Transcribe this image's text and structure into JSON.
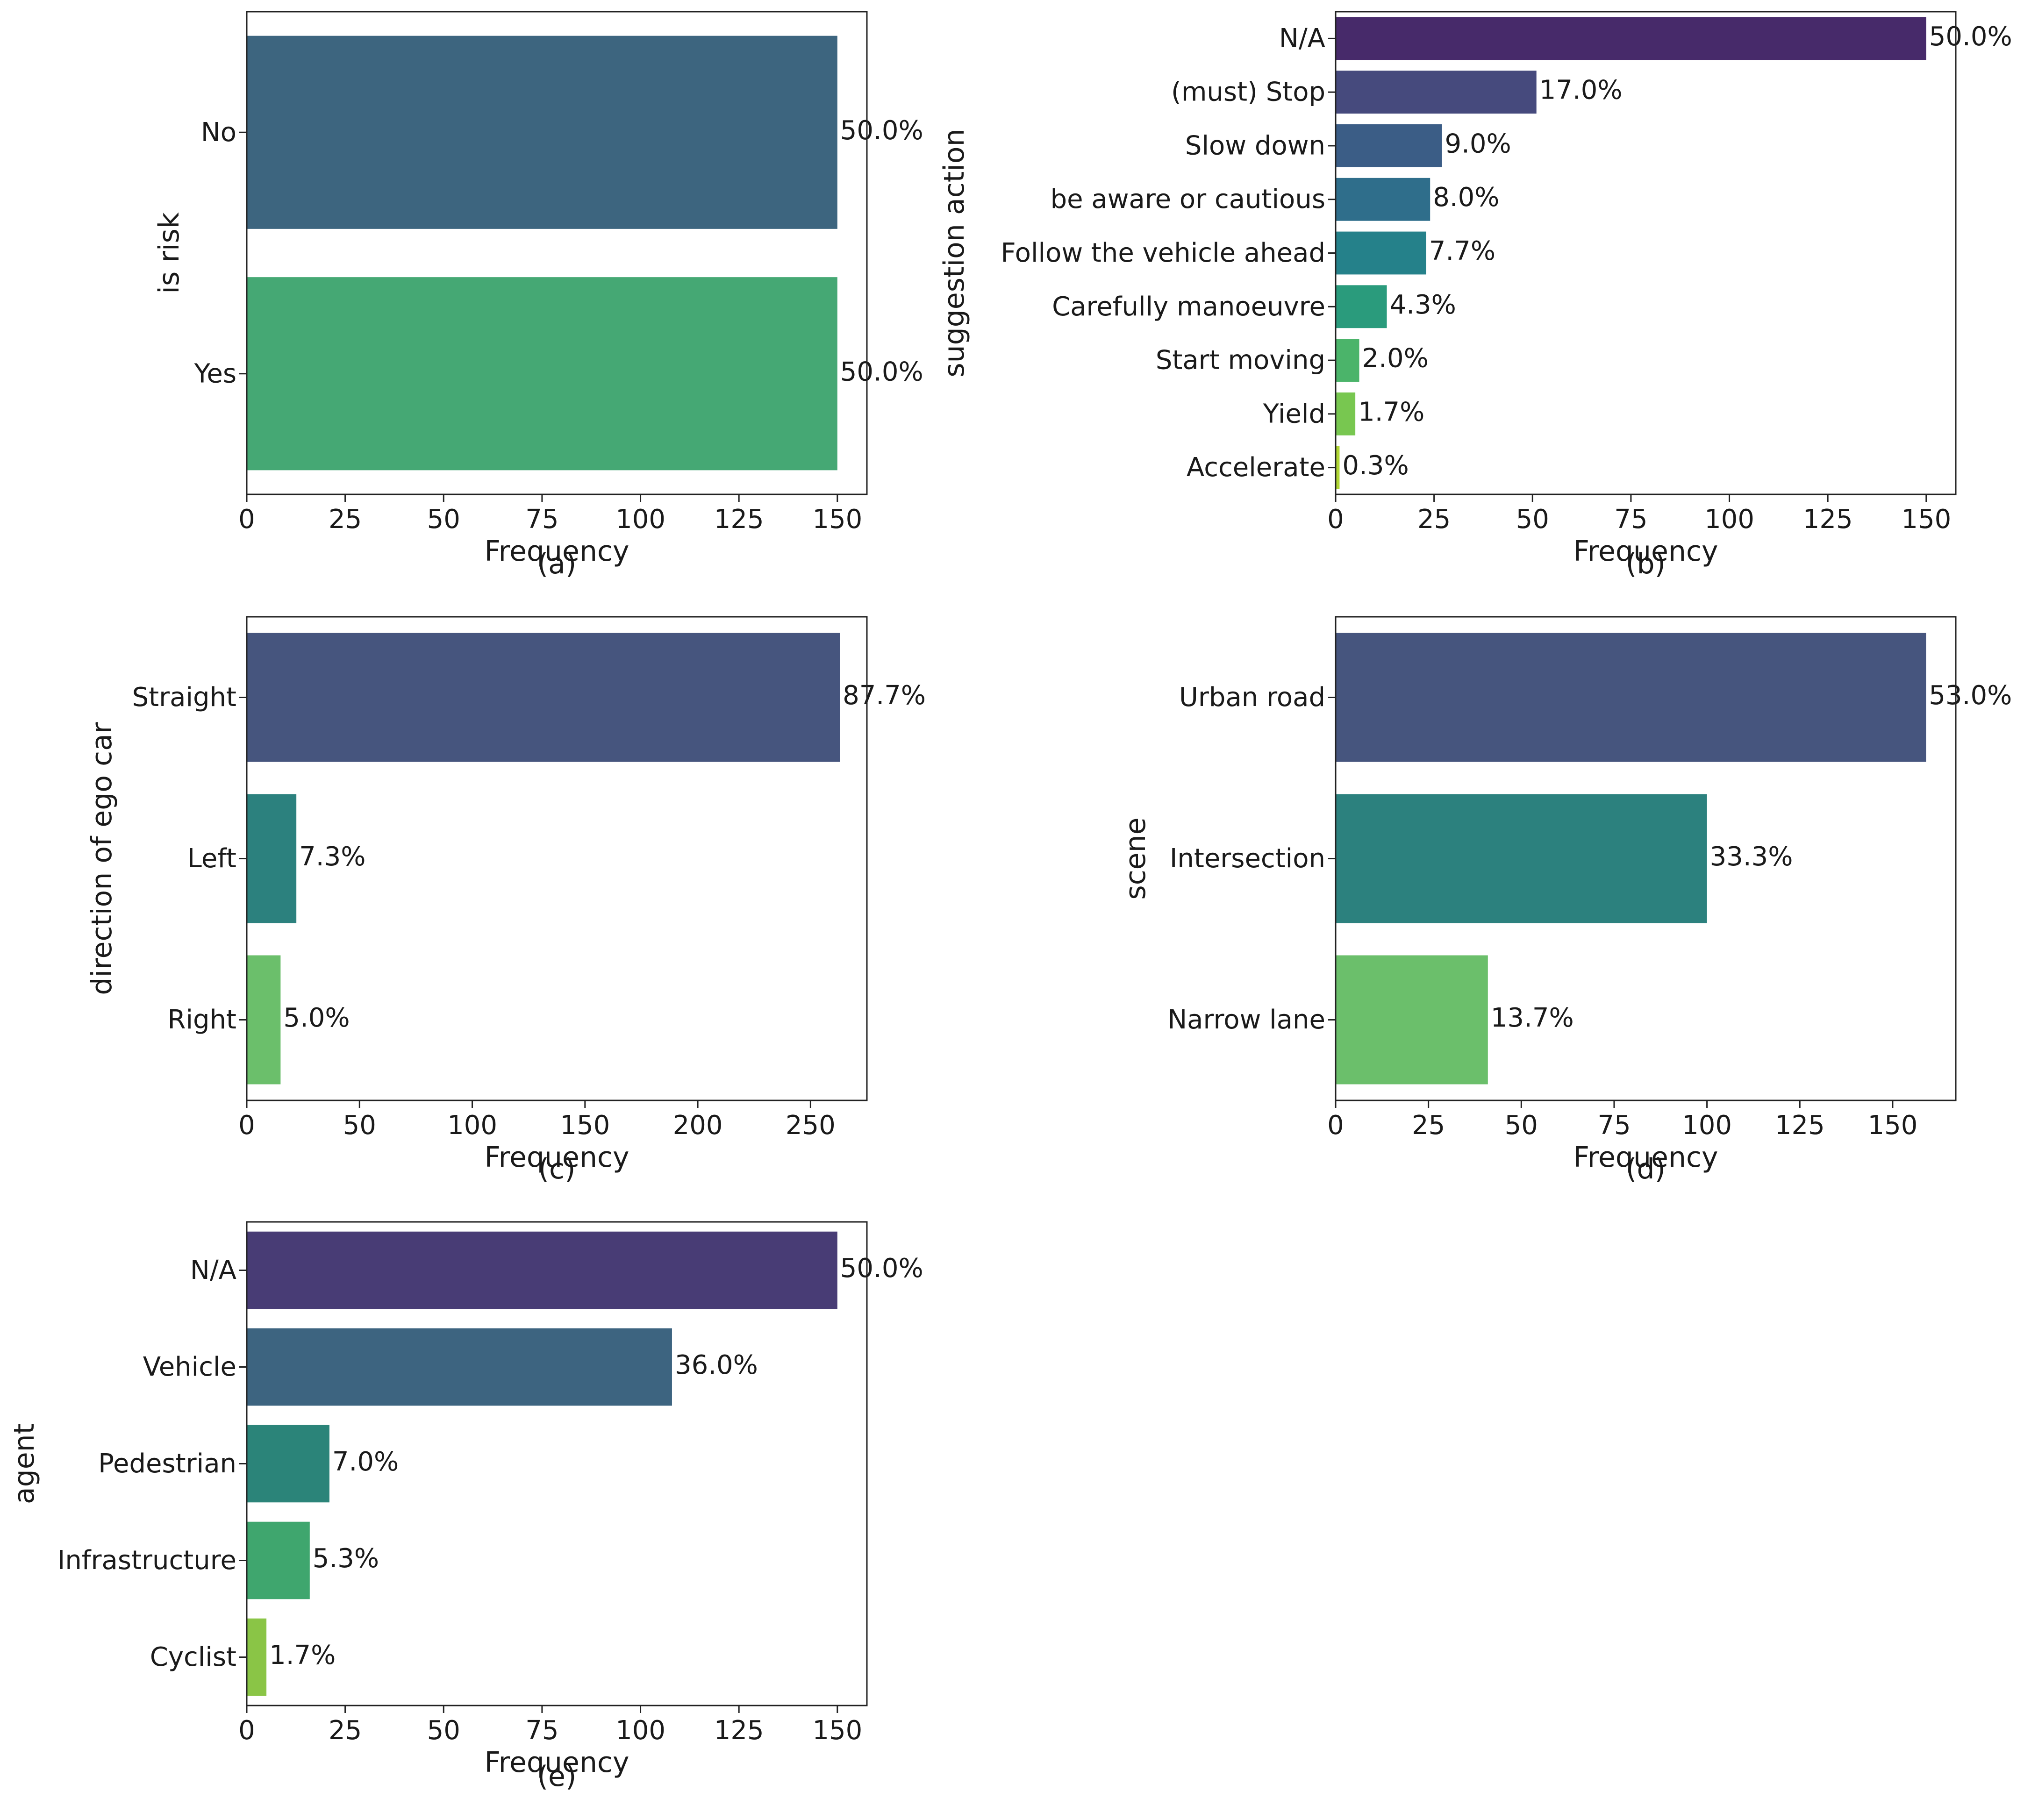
{
  "chart_data": [
    {
      "type": "bar",
      "orientation": "horizontal",
      "caption": "(a)",
      "xlabel": "Frequency",
      "ylabel": "is risk",
      "xlim": [
        0,
        157.5
      ],
      "xticks": [
        0,
        25,
        50,
        75,
        100,
        125,
        150
      ],
      "categories": [
        "No",
        "Yes"
      ],
      "values": [
        150,
        150
      ],
      "labels": [
        "50.0%",
        "50.0%"
      ],
      "colors": [
        "#3d657f",
        "#45a874"
      ]
    },
    {
      "type": "bar",
      "orientation": "horizontal",
      "caption": "(b)",
      "xlabel": "Frequency",
      "ylabel": "suggestion action",
      "xlim": [
        0,
        157.5
      ],
      "xticks": [
        0,
        25,
        50,
        75,
        100,
        125,
        150
      ],
      "categories": [
        "N/A",
        "(must) Stop",
        "Slow down",
        "be aware or cautious",
        "Follow the vehicle ahead",
        "Carefully manoeuvre",
        "Start moving",
        "Yield",
        "Accelerate"
      ],
      "values": [
        150,
        51,
        27,
        24,
        23,
        13,
        6,
        5,
        1
      ],
      "labels": [
        "50.0%",
        "17.0%",
        "9.0%",
        "8.0%",
        "7.7%",
        "4.3%",
        "2.0%",
        "1.7%",
        "0.3%"
      ],
      "colors": [
        "#472a6a",
        "#464a7d",
        "#3b5d86",
        "#2f6e8b",
        "#25818a",
        "#2a9b7c",
        "#4bb46a",
        "#78c750",
        "#b0d633"
      ]
    },
    {
      "type": "bar",
      "orientation": "horizontal",
      "caption": "(c)",
      "xlabel": "Frequency",
      "ylabel": "direction of ego car",
      "xlim": [
        0,
        275
      ],
      "xticks": [
        0,
        50,
        100,
        150,
        200,
        250
      ],
      "categories": [
        "Straight",
        "Left",
        "Right"
      ],
      "values": [
        263,
        22,
        15
      ],
      "labels": [
        "87.7%",
        "7.3%",
        "5.0%"
      ],
      "colors": [
        "#46557e",
        "#2c817e",
        "#6bbf6b"
      ]
    },
    {
      "type": "bar",
      "orientation": "horizontal",
      "caption": "(d)",
      "xlabel": "Frequency",
      "ylabel": "scene",
      "xlim": [
        0,
        167
      ],
      "xticks": [
        0,
        25,
        50,
        75,
        100,
        125,
        150
      ],
      "categories": [
        "Urban road",
        "Intersection",
        "Narrow lane"
      ],
      "values": [
        159,
        100,
        41
      ],
      "labels": [
        "53.0%",
        "33.3%",
        "13.7%"
      ],
      "colors": [
        "#46557e",
        "#2c817e",
        "#6bbf6b"
      ]
    },
    {
      "type": "bar",
      "orientation": "horizontal",
      "caption": "(e)",
      "xlabel": "Frequency",
      "ylabel": "agent",
      "xlim": [
        0,
        157.5
      ],
      "xticks": [
        0,
        25,
        50,
        75,
        100,
        125,
        150
      ],
      "categories": [
        "N/A",
        "Vehicle",
        "Pedestrian",
        "Infrastructure",
        "Cyclist"
      ],
      "values": [
        150,
        108,
        21,
        16,
        5
      ],
      "labels": [
        "50.0%",
        "36.0%",
        "7.0%",
        "5.3%",
        "1.7%"
      ],
      "colors": [
        "#483c75",
        "#3d6480",
        "#2b8479",
        "#3fa66e",
        "#8ac546"
      ]
    }
  ]
}
